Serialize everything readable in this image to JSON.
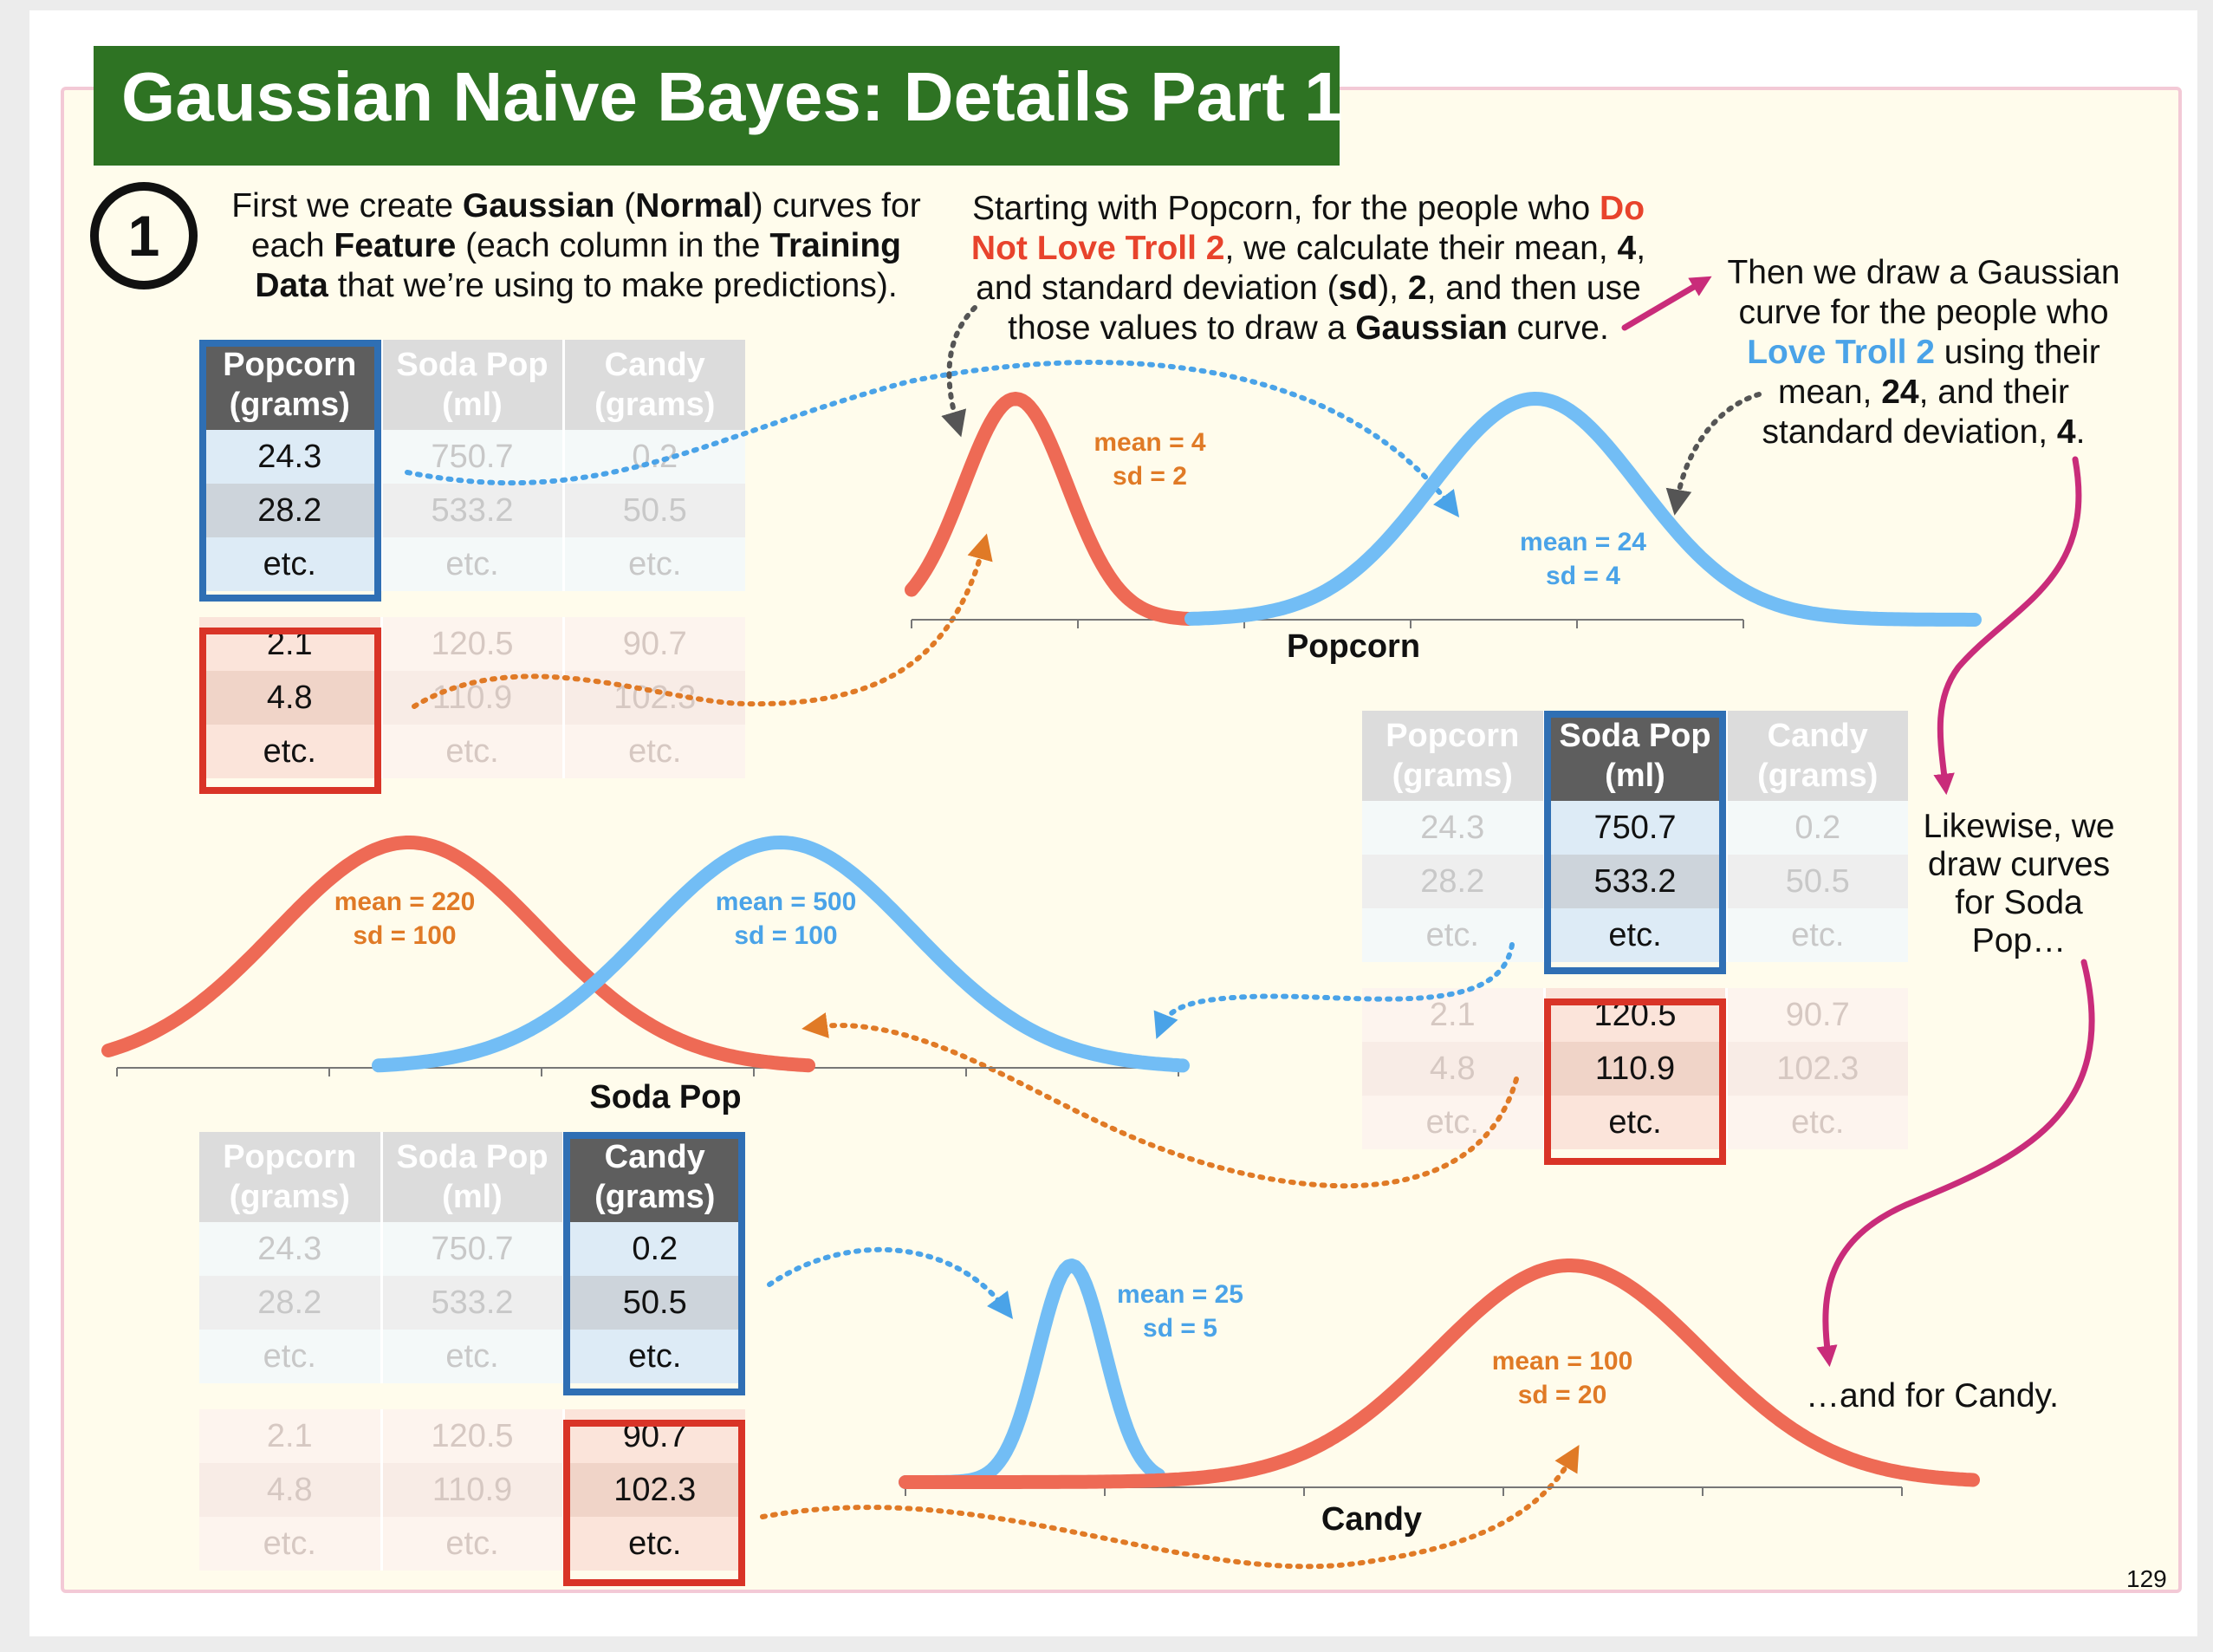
{
  "title": "Gaussian Naive Bayes: Details Part 1",
  "step_number": "1",
  "text": {
    "intro": [
      "First we create ",
      "Gaussian",
      " (",
      "Normal",
      ") curves for",
      "each ",
      "Feature",
      " (each column in the ",
      "Training",
      "Data",
      " that we’re using to make predictions)."
    ],
    "popcorn_no": [
      "Starting with Popcorn, for the people who ",
      "Do",
      "Not Love Troll 2",
      ", we calculate their mean, ",
      "4",
      ",",
      "and standard deviation (",
      "sd",
      "), ",
      "2",
      ", and then use",
      "those values to draw a ",
      "Gaussian",
      " curve."
    ],
    "popcorn_yes": [
      "Then we draw a Gaussian",
      "curve for the people who",
      "Love Troll 2",
      " using their",
      "mean, ",
      "24",
      ", and their",
      "standard deviation, ",
      "4",
      "."
    ],
    "soda_pop": [
      "Likewise, we",
      "draw curves",
      "for Soda",
      "Pop…"
    ],
    "candy": "…and for Candy."
  },
  "tables": [
    {
      "headers": [
        "Popcorn (grams)",
        "Soda Pop (ml)",
        "Candy (grams)"
      ],
      "highlight_col": 0,
      "love_rows": [
        [
          "24.3",
          "750.7",
          "0.2"
        ],
        [
          "28.2",
          "533.2",
          "50.5"
        ],
        [
          "etc.",
          "etc.",
          "etc."
        ]
      ],
      "not_love_rows": [
        [
          "2.1",
          "120.5",
          "90.7"
        ],
        [
          "4.8",
          "110.9",
          "102.3"
        ],
        [
          "etc.",
          "etc.",
          "etc."
        ]
      ]
    },
    {
      "headers": [
        "Popcorn (grams)",
        "Soda Pop (ml)",
        "Candy (grams)"
      ],
      "highlight_col": 1,
      "love_rows": [
        [
          "24.3",
          "750.7",
          "0.2"
        ],
        [
          "28.2",
          "533.2",
          "50.5"
        ],
        [
          "etc.",
          "etc.",
          "etc."
        ]
      ],
      "not_love_rows": [
        [
          "2.1",
          "120.5",
          "90.7"
        ],
        [
          "4.8",
          "110.9",
          "102.3"
        ],
        [
          "etc.",
          "etc.",
          "etc."
        ]
      ]
    },
    {
      "headers": [
        "Popcorn (grams)",
        "Soda Pop (ml)",
        "Candy (grams)"
      ],
      "highlight_col": 2,
      "love_rows": [
        [
          "24.3",
          "750.7",
          "0.2"
        ],
        [
          "28.2",
          "533.2",
          "50.5"
        ],
        [
          "etc.",
          "etc.",
          "etc."
        ]
      ],
      "not_love_rows": [
        [
          "2.1",
          "120.5",
          "90.7"
        ],
        [
          "4.8",
          "110.9",
          "102.3"
        ],
        [
          "etc.",
          "etc.",
          "etc."
        ]
      ]
    }
  ],
  "plots": [
    {
      "xlabel": "Popcorn",
      "xlim": [
        0,
        32
      ],
      "curves": [
        {
          "group": "not_love",
          "mean": 4,
          "sd": 2,
          "label": [
            "mean = 4",
            "sd = 2"
          ]
        },
        {
          "group": "love",
          "mean": 24,
          "sd": 4,
          "label": [
            "mean = 24",
            "sd = 4"
          ]
        }
      ]
    },
    {
      "xlabel": "Soda Pop",
      "xlim": [
        0,
        800
      ],
      "curves": [
        {
          "group": "not_love",
          "mean": 220,
          "sd": 100,
          "label": [
            "mean = 220",
            "sd = 100"
          ]
        },
        {
          "group": "love",
          "mean": 500,
          "sd": 100,
          "label": [
            "mean = 500",
            "sd = 100"
          ]
        }
      ]
    },
    {
      "xlabel": "Candy",
      "xlim": [
        0,
        150
      ],
      "curves": [
        {
          "group": "love",
          "mean": 25,
          "sd": 5,
          "label": [
            "mean = 25",
            "sd = 5"
          ]
        },
        {
          "group": "not_love",
          "mean": 100,
          "sd": 20,
          "label": [
            "mean = 100",
            "sd = 20"
          ]
        }
      ]
    }
  ],
  "colors": {
    "title_bg": "#2e7323",
    "love": "#72bdf5",
    "not_love": "#ee6a55",
    "love_text": "#4aa3e8",
    "not_love_text": "#e07a26",
    "arrow_magenta": "#c92c7a",
    "love_box": "#2f6fb4",
    "not_love_box": "#d93427"
  },
  "page_number": "129"
}
